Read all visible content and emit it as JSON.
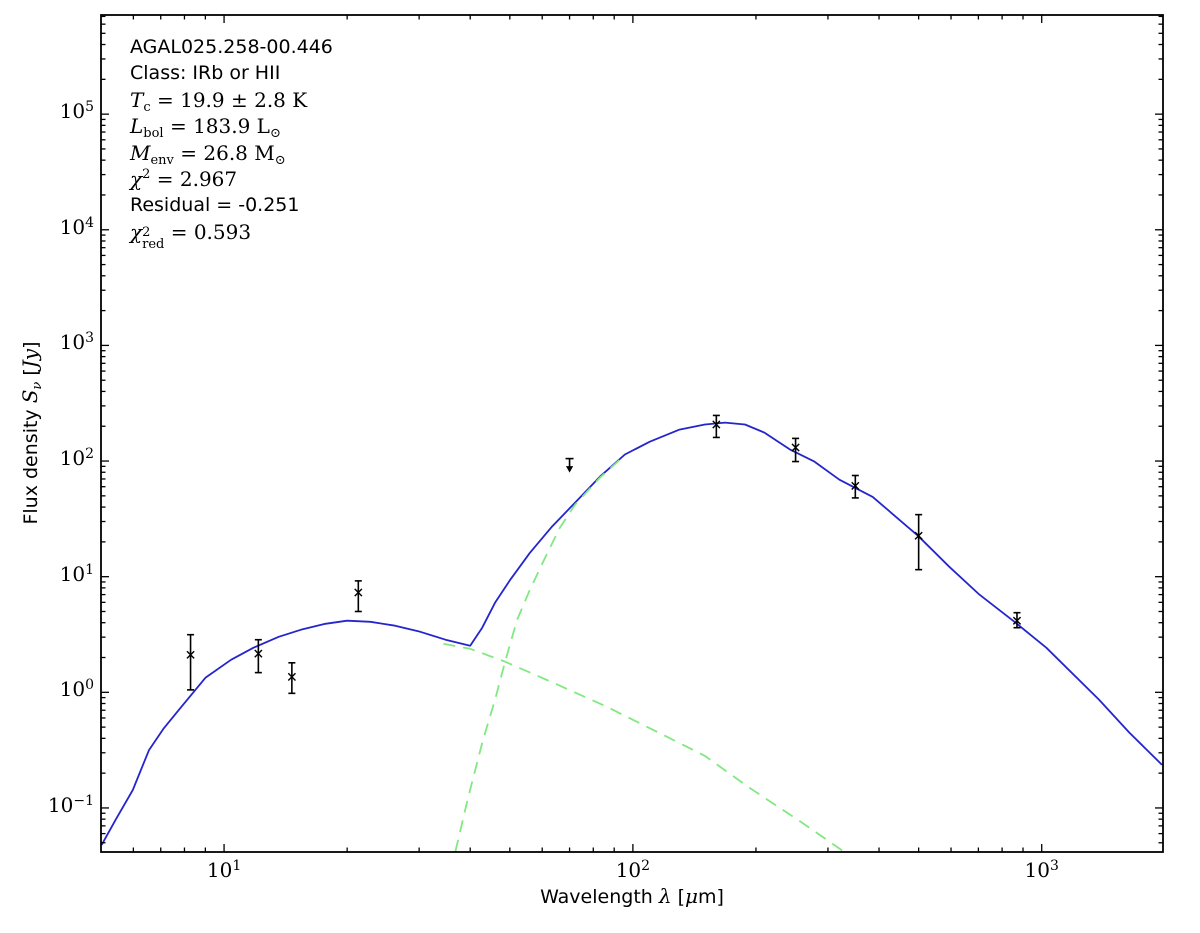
{
  "figure": {
    "bg": "#ffffff",
    "frame_color": "#000000"
  },
  "annotation": {
    "lines": [
      {
        "name": "source-name",
        "segments": [
          {
            "t": "AGAL025.258-00.446",
            "f": "sans"
          }
        ]
      },
      {
        "name": "class",
        "segments": [
          {
            "t": "Class: IRb or HII",
            "f": "sans"
          }
        ]
      },
      {
        "name": "temperature",
        "segments": [
          {
            "t": "T",
            "f": "si"
          },
          {
            "t": "c",
            "f": "sr",
            "s": "sub"
          },
          {
            "t": " = 19.9 ± 2.8 K",
            "f": "sr"
          }
        ]
      },
      {
        "name": "luminosity",
        "segments": [
          {
            "t": "L",
            "f": "si"
          },
          {
            "t": "bol",
            "f": "sr",
            "s": "sub"
          },
          {
            "t": " = 183.9 L",
            "f": "sr"
          },
          {
            "t": "⊙",
            "f": "sr",
            "s": "sub"
          }
        ]
      },
      {
        "name": "mass",
        "segments": [
          {
            "t": "M",
            "f": "si"
          },
          {
            "t": "env",
            "f": "sr",
            "s": "sub"
          },
          {
            "t": " = 26.8 M",
            "f": "sr"
          },
          {
            "t": "⊙",
            "f": "sr",
            "s": "sub"
          }
        ]
      },
      {
        "name": "chi-squared",
        "segments": [
          {
            "t": "χ",
            "f": "si"
          },
          {
            "t": "2",
            "f": "sr",
            "s": "sup"
          },
          {
            "t": " = 2.967",
            "f": "sr"
          }
        ]
      },
      {
        "name": "residual",
        "segments": [
          {
            "t": "Residual = -0.251",
            "f": "sans"
          }
        ]
      },
      {
        "name": "chi-squared-reduced",
        "segments": [
          {
            "t": "χ",
            "f": "si"
          },
          {
            "sup": "2",
            "sub": "red",
            "f": "sr"
          },
          {
            "t": " = 0.593",
            "f": "sr"
          }
        ]
      }
    ]
  },
  "x_axis": {
    "label_parts": [
      {
        "t": "Wavelength ",
        "f": "sans"
      },
      {
        "t": "λ",
        "f": "si"
      },
      {
        "t": " [",
        "f": "sans"
      },
      {
        "t": "μ",
        "f": "si"
      },
      {
        "t": "m]",
        "f": "sans"
      }
    ],
    "major_ticks": [
      {
        "base": "10",
        "exp": "1",
        "value": 10
      },
      {
        "base": "10",
        "exp": "2",
        "value": 100
      },
      {
        "base": "10",
        "exp": "3",
        "value": 1000
      }
    ]
  },
  "y_axis": {
    "label_parts": [
      {
        "t": "Flux density ",
        "f": "sans"
      },
      {
        "t": "S",
        "f": "si"
      },
      {
        "t": "ν",
        "f": "si",
        "s": "sub"
      },
      {
        "t": " [",
        "f": "sans"
      },
      {
        "t": "Jy",
        "f": "si"
      },
      {
        "t": "]",
        "f": "sans"
      }
    ],
    "major_ticks": [
      {
        "base": "10",
        "exp": "5",
        "value": 100000
      },
      {
        "base": "10",
        "exp": "4",
        "value": 10000
      },
      {
        "base": "10",
        "exp": "3",
        "value": 1000
      },
      {
        "base": "10",
        "exp": "2",
        "value": 100
      },
      {
        "base": "10",
        "exp": "1",
        "value": 10
      },
      {
        "base": "10",
        "exp": "0",
        "value": 1
      },
      {
        "base": "10",
        "exp": "−1",
        "value": 0.1
      }
    ]
  },
  "chart_data": {
    "type": "line",
    "title": "AGAL025.258-00.446",
    "xlabel": "Wavelength λ [μm]",
    "ylabel": "Flux density Sν [Jy]",
    "xscale": "log",
    "yscale": "log",
    "xlim": [
      5.0,
      1980
    ],
    "ylim": [
      0.0416,
      720000
    ],
    "grid": false,
    "legend": "none",
    "marker_color": "#000000",
    "points": [
      {
        "lambda_um": 8.28,
        "flux_jy": 2.11,
        "err_lo_jy": 1.05,
        "err_hi_jy": 3.15
      },
      {
        "lambda_um": 12.13,
        "flux_jy": 2.16,
        "err_lo_jy": 1.48,
        "err_hi_jy": 2.85
      },
      {
        "lambda_um": 14.65,
        "flux_jy": 1.36,
        "err_lo_jy": 0.98,
        "err_hi_jy": 1.8
      },
      {
        "lambda_um": 21.3,
        "flux_jy": 7.3,
        "err_lo_jy": 5.0,
        "err_hi_jy": 9.2
      },
      {
        "lambda_um": 160,
        "flux_jy": 207,
        "err_lo_jy": 160,
        "err_hi_jy": 248
      },
      {
        "lambda_um": 250,
        "flux_jy": 131,
        "err_lo_jy": 99,
        "err_hi_jy": 157
      },
      {
        "lambda_um": 350,
        "flux_jy": 61,
        "err_lo_jy": 48,
        "err_hi_jy": 75
      },
      {
        "lambda_um": 500,
        "flux_jy": 22.6,
        "err_lo_jy": 11.5,
        "err_hi_jy": 34.4
      },
      {
        "lambda_um": 870,
        "flux_jy": 4.16,
        "err_lo_jy": 3.62,
        "err_hi_jy": 4.88
      }
    ],
    "upper_limit": {
      "lambda_um": 70,
      "flux_jy": 105
    },
    "series": [
      {
        "name": "total-fit",
        "color": "#2525cd",
        "style": "solid",
        "points": [
          [
            5.02,
            0.048
          ],
          [
            5.43,
            0.079
          ],
          [
            5.98,
            0.143
          ],
          [
            6.55,
            0.315
          ],
          [
            7.12,
            0.488
          ],
          [
            7.75,
            0.705
          ],
          [
            9.01,
            1.34
          ],
          [
            10.4,
            1.91
          ],
          [
            11.8,
            2.43
          ],
          [
            13.6,
            3.02
          ],
          [
            15.4,
            3.47
          ],
          [
            17.7,
            3.91
          ],
          [
            20.0,
            4.16
          ],
          [
            22.8,
            4.07
          ],
          [
            26.2,
            3.77
          ],
          [
            30.2,
            3.34
          ],
          [
            34.8,
            2.85
          ],
          [
            40.0,
            2.53
          ],
          [
            42.8,
            3.62
          ],
          [
            46.0,
            5.95
          ],
          [
            50.1,
            9.4
          ],
          [
            56.0,
            16.1
          ],
          [
            63.4,
            27.1
          ],
          [
            72.2,
            43.7
          ],
          [
            83.1,
            73.4
          ],
          [
            95.6,
            114
          ],
          [
            110,
            147
          ],
          [
            130,
            187
          ],
          [
            150,
            207
          ],
          [
            168,
            215
          ],
          [
            188,
            207
          ],
          [
            210,
            176
          ],
          [
            242,
            126
          ],
          [
            278,
            99
          ],
          [
            320,
            69
          ],
          [
            386,
            49
          ],
          [
            449,
            31
          ],
          [
            498,
            22.6
          ],
          [
            594,
            12.2
          ],
          [
            704,
            7.0
          ],
          [
            857,
            4.08
          ],
          [
            1026,
            2.43
          ],
          [
            1382,
            0.86
          ],
          [
            1636,
            0.45
          ],
          [
            1969,
            0.236
          ]
        ]
      },
      {
        "name": "cold-component",
        "color": "#82e882",
        "style": "dashed",
        "points": [
          [
            36.8,
            0.042
          ],
          [
            39.5,
            0.122
          ],
          [
            43.0,
            0.388
          ],
          [
            46.0,
            0.86
          ],
          [
            48.7,
            1.84
          ],
          [
            52.1,
            4.24
          ],
          [
            56.0,
            7.7
          ],
          [
            61.0,
            14.6
          ],
          [
            66.3,
            26.6
          ],
          [
            72.2,
            42.0
          ],
          [
            83.1,
            71.9
          ],
          [
            93.0,
            103
          ]
        ]
      },
      {
        "name": "warm-component",
        "color": "#82e882",
        "style": "dashed",
        "points": [
          [
            34.4,
            2.63
          ],
          [
            40.0,
            2.38
          ],
          [
            48.7,
            1.84
          ],
          [
            63.8,
            1.21
          ],
          [
            86.4,
            0.75
          ],
          [
            116,
            0.446
          ],
          [
            150,
            0.282
          ],
          [
            193,
            0.149
          ],
          [
            256,
            0.077
          ],
          [
            329,
            0.0416
          ]
        ]
      }
    ],
    "fit_params": {
      "class": "IRb or HII",
      "T_c_K": "19.9 ± 2.8",
      "L_bol_Lsun": 183.9,
      "M_env_Msun": 26.8,
      "chi2": 2.967,
      "residual": -0.251,
      "chi2_red": 0.593
    }
  }
}
